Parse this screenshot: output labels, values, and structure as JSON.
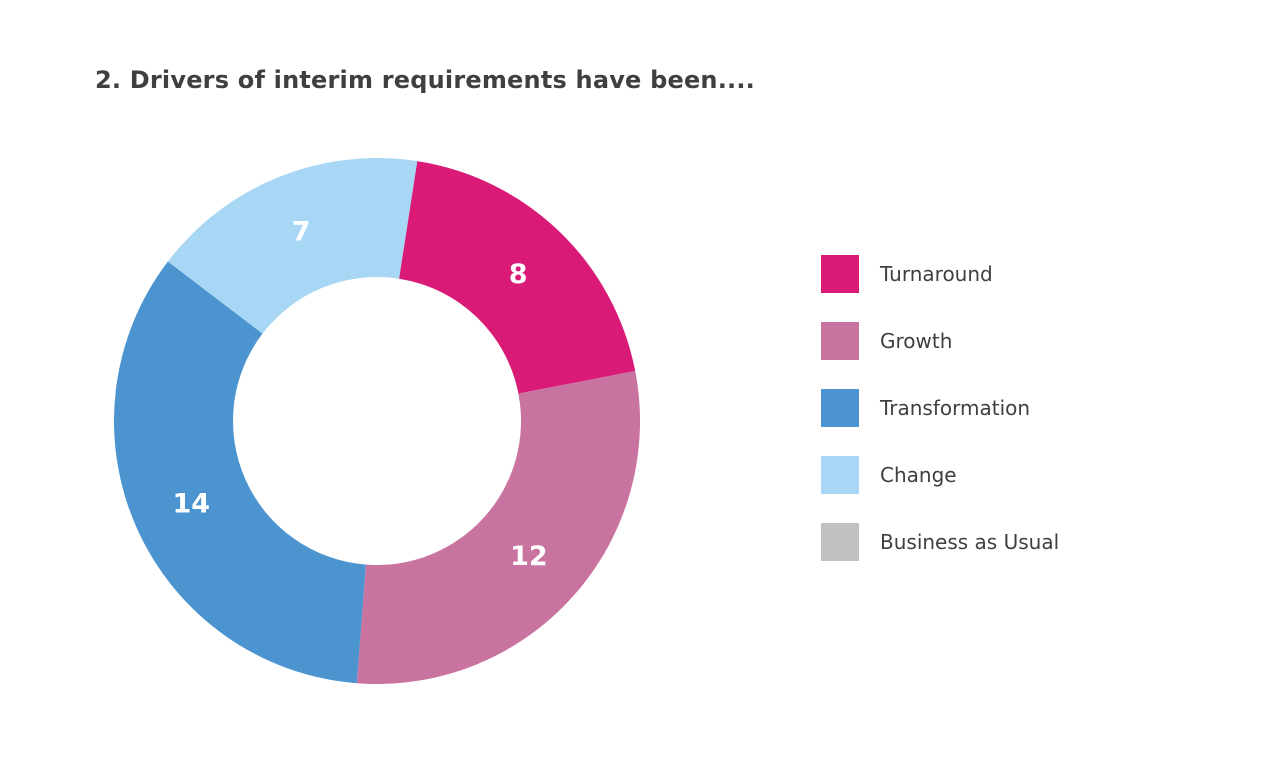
{
  "page": {
    "background": "#ffffff",
    "title_color": "#3f3f3f",
    "legend_text_color": "#3f3f3f"
  },
  "chart_data": {
    "type": "pie",
    "subtype": "donut",
    "title": "2. Drivers of interim requirements have been....",
    "categories": [
      "Turnaround",
      "Growth",
      "Transformation",
      "Change",
      "Business as Usual"
    ],
    "values": [
      8,
      12,
      14,
      7,
      0
    ],
    "colors": [
      "#d91b77",
      "#c973a0",
      "#4b94cf",
      "#a7d7f4",
      "#c2c2c2"
    ],
    "total": 41,
    "start_angle_deg": 8.8,
    "direction": "clockwise",
    "inner_radius_ratio": 0.547,
    "value_label_color": "#ffffff",
    "legend_position": "right",
    "legend": [
      {
        "label": "Turnaround",
        "color": "#d91b77"
      },
      {
        "label": "Growth",
        "color": "#c973a0"
      },
      {
        "label": "Transformation",
        "color": "#4b94cf"
      },
      {
        "label": "Change",
        "color": "#a7d7f4"
      },
      {
        "label": "Business as Usual",
        "color": "#c2c2c2"
      }
    ]
  }
}
